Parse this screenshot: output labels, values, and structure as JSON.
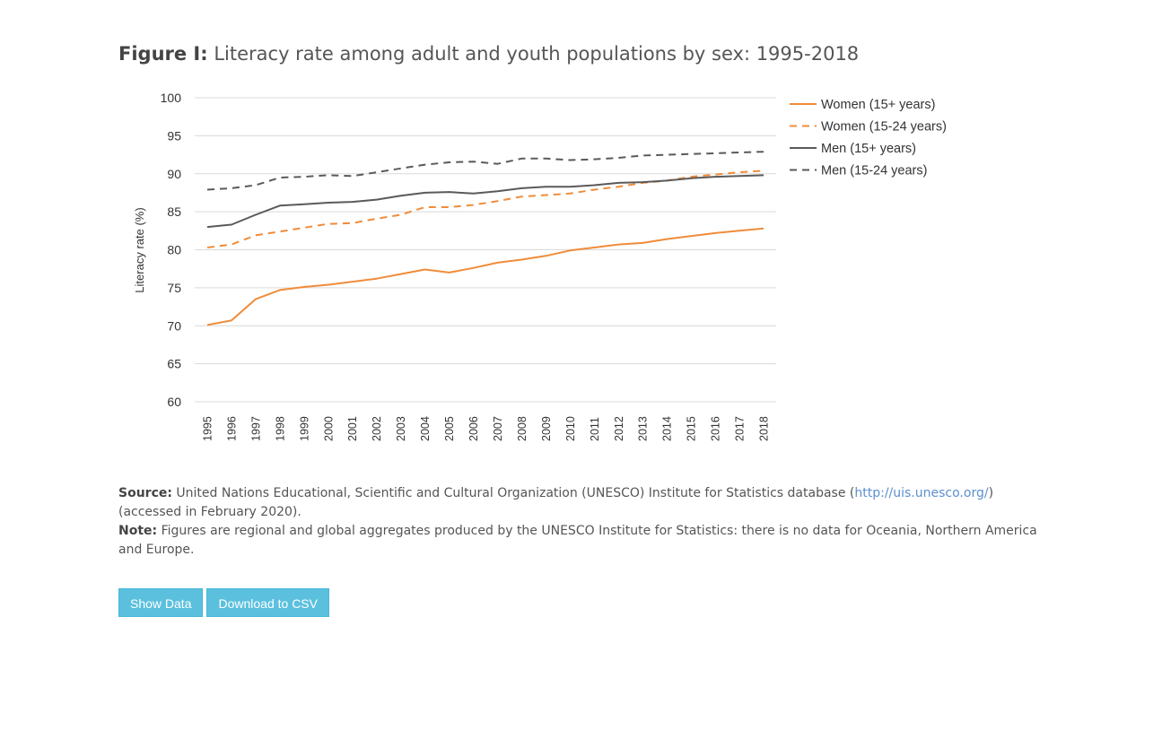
{
  "figure": {
    "title_lead": "Figure I:",
    "title_text": " Literacy rate among adult and youth populations by sex: 1995-2018"
  },
  "chart_data": {
    "type": "line",
    "title": "",
    "xlabel": "",
    "ylabel": "Literacy rate (%)",
    "ylim": [
      60,
      100
    ],
    "yticks": [
      "60",
      "65",
      "70",
      "75",
      "80",
      "85",
      "90",
      "95",
      "100"
    ],
    "grid": true,
    "legend_position": "right",
    "categories": [
      "1995",
      "1996",
      "1997",
      "1998",
      "1999",
      "2000",
      "2001",
      "2002",
      "2003",
      "2004",
      "2005",
      "2006",
      "2007",
      "2008",
      "2009",
      "2010",
      "2011",
      "2012",
      "2013",
      "2014",
      "2015",
      "2016",
      "2017",
      "2018"
    ],
    "series": [
      {
        "name": "Women (15+ years)",
        "color": "#f08c3a",
        "dash": "solid",
        "values": [
          70.1,
          70.7,
          73.5,
          74.7,
          75.1,
          75.4,
          75.8,
          76.2,
          76.8,
          77.4,
          77.0,
          77.6,
          78.3,
          78.7,
          79.2,
          79.9,
          80.3,
          80.7,
          80.9,
          81.4,
          81.8,
          82.2,
          82.5,
          82.8
        ]
      },
      {
        "name": "Women (15-24 years)",
        "color": "#f08c3a",
        "dash": "dashed",
        "values": [
          80.3,
          80.7,
          81.9,
          82.4,
          82.9,
          83.4,
          83.5,
          84.1,
          84.6,
          85.6,
          85.6,
          85.9,
          86.4,
          87.0,
          87.2,
          87.4,
          87.9,
          88.3,
          88.8,
          89.1,
          89.6,
          89.9,
          90.2,
          90.4
        ]
      },
      {
        "name": "Men (15+ years)",
        "color": "#5a5a5a",
        "dash": "solid",
        "values": [
          83.0,
          83.3,
          84.6,
          85.8,
          86.0,
          86.2,
          86.3,
          86.6,
          87.1,
          87.5,
          87.6,
          87.4,
          87.7,
          88.1,
          88.3,
          88.3,
          88.5,
          88.8,
          88.9,
          89.1,
          89.4,
          89.6,
          89.7,
          89.8
        ]
      },
      {
        "name": "Men (15-24 years)",
        "color": "#5a5a5a",
        "dash": "dashed",
        "values": [
          87.9,
          88.1,
          88.5,
          89.5,
          89.6,
          89.8,
          89.7,
          90.2,
          90.7,
          91.2,
          91.5,
          91.6,
          91.3,
          92.0,
          92.0,
          91.8,
          91.9,
          92.1,
          92.4,
          92.5,
          92.6,
          92.7,
          92.8,
          92.9
        ]
      }
    ]
  },
  "notes": {
    "source_label": "Source:",
    "source_text_1": " United Nations Educational, Scientific and Cultural Organization (UNESCO) Institute for Statistics database (",
    "source_link": "http://uis.unesco.org/",
    "source_text_2": ") (accessed in February 2020).",
    "note_label": "Note:",
    "note_text": " Figures are regional and global aggregates produced by the UNESCO Institute for Statistics: there is no data for Oceania, Northern America and Europe."
  },
  "buttons": {
    "show_data": "Show Data",
    "download_csv": "Download to CSV"
  }
}
